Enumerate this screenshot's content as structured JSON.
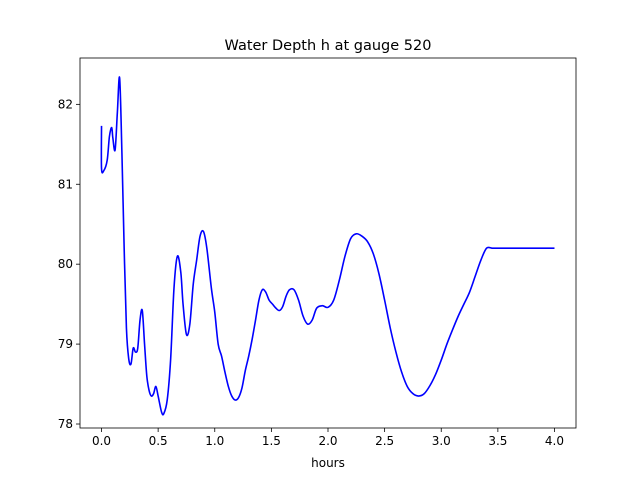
{
  "chart_data": {
    "type": "line",
    "title": "Water Depth h at gauge 520",
    "xlabel": "hours",
    "ylabel": "",
    "xlim": [
      -0.19,
      4.19
    ],
    "ylim": [
      77.95,
      82.58
    ],
    "xticks": [
      0.0,
      0.5,
      1.0,
      1.5,
      2.0,
      2.5,
      3.0,
      3.5,
      4.0
    ],
    "xtick_labels": [
      "0.0",
      "0.5",
      "1.0",
      "1.5",
      "2.0",
      "2.5",
      "3.0",
      "3.5",
      "4.0"
    ],
    "yticks": [
      78,
      79,
      80,
      81,
      82
    ],
    "ytick_labels": [
      "78",
      "79",
      "80",
      "81",
      "82"
    ],
    "grid": false,
    "series": [
      {
        "color": "#0000ff",
        "x": [
          0.0,
          0.0,
          0.02,
          0.05,
          0.07,
          0.09,
          0.1,
          0.12,
          0.14,
          0.16,
          0.18,
          0.2,
          0.22,
          0.24,
          0.26,
          0.28,
          0.3,
          0.32,
          0.34,
          0.36,
          0.38,
          0.4,
          0.42,
          0.44,
          0.46,
          0.48,
          0.5,
          0.53,
          0.55,
          0.58,
          0.61,
          0.64,
          0.67,
          0.7,
          0.72,
          0.75,
          0.78,
          0.81,
          0.84,
          0.87,
          0.9,
          0.93,
          0.97,
          1.0,
          1.03,
          1.06,
          1.09,
          1.12,
          1.15,
          1.18,
          1.21,
          1.24,
          1.27,
          1.3,
          1.33,
          1.36,
          1.39,
          1.42,
          1.45,
          1.48,
          1.51,
          1.54,
          1.57,
          1.6,
          1.63,
          1.66,
          1.7,
          1.74,
          1.78,
          1.82,
          1.86,
          1.9,
          1.95,
          2.0,
          2.05,
          2.1,
          2.15,
          2.2,
          2.25,
          2.3,
          2.35,
          2.4,
          2.45,
          2.5,
          2.55,
          2.6,
          2.65,
          2.7,
          2.75,
          2.8,
          2.85,
          2.9,
          2.95,
          3.0,
          3.05,
          3.1,
          3.15,
          3.2,
          3.25,
          3.3,
          3.35,
          3.4,
          3.45,
          3.5,
          3.55,
          3.6,
          3.65,
          3.7,
          3.75,
          3.8,
          3.85,
          3.9,
          3.95,
          4.0
        ],
        "values": [
          81.73,
          81.2,
          81.17,
          81.3,
          81.6,
          81.71,
          81.58,
          81.43,
          81.9,
          82.33,
          81.4,
          80.2,
          79.2,
          78.82,
          78.75,
          78.95,
          78.9,
          78.95,
          79.3,
          79.42,
          79.0,
          78.6,
          78.42,
          78.35,
          78.38,
          78.47,
          78.35,
          78.15,
          78.13,
          78.3,
          78.8,
          79.7,
          80.1,
          79.9,
          79.5,
          79.12,
          79.25,
          79.75,
          80.05,
          80.35,
          80.41,
          80.2,
          79.7,
          79.4,
          79.0,
          78.85,
          78.65,
          78.47,
          78.35,
          78.3,
          78.33,
          78.45,
          78.67,
          78.85,
          79.06,
          79.3,
          79.55,
          79.68,
          79.65,
          79.55,
          79.5,
          79.45,
          79.42,
          79.47,
          79.6,
          79.68,
          79.68,
          79.55,
          79.35,
          79.25,
          79.3,
          79.45,
          79.48,
          79.46,
          79.55,
          79.8,
          80.1,
          80.32,
          80.38,
          80.35,
          80.28,
          80.13,
          79.88,
          79.55,
          79.2,
          78.9,
          78.65,
          78.47,
          78.38,
          78.35,
          78.38,
          78.48,
          78.62,
          78.8,
          79.0,
          79.18,
          79.35,
          79.5,
          79.65,
          79.85,
          80.05,
          80.2,
          80.2,
          80.2,
          80.2,
          80.2,
          80.2,
          80.2,
          80.2,
          80.2,
          80.2,
          80.2,
          80.2,
          80.2
        ]
      }
    ]
  }
}
